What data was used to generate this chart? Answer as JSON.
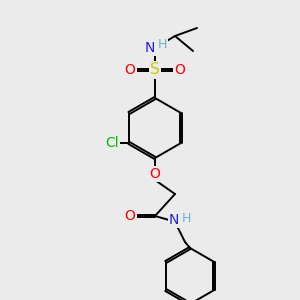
{
  "bg_color": "#ebebeb",
  "atom_colors": {
    "C": "#000000",
    "H": "#6ab4c8",
    "N": "#2020e0",
    "O": "#ff0000",
    "S": "#cccc00",
    "Cl": "#00bb00"
  },
  "bond_color": "#000000",
  "font_size": 10,
  "fig_size": [
    3.0,
    3.0
  ],
  "dpi": 100
}
